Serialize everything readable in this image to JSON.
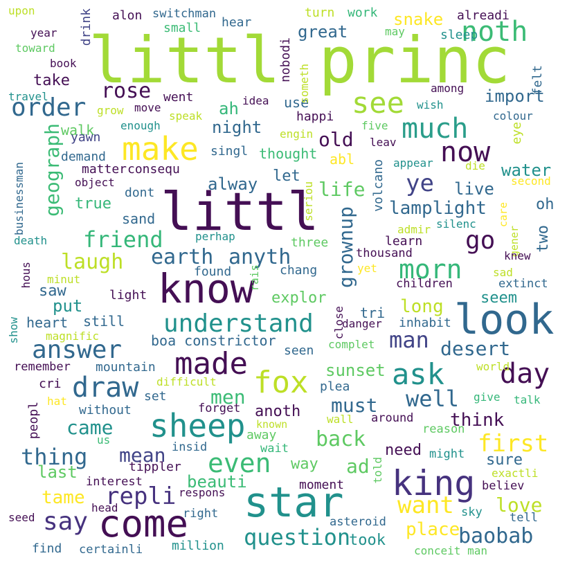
{
  "words": [
    {
      "text": "littl princ",
      "color": "#a2da37"
    },
    {
      "text": "littl",
      "color": "#440f54"
    },
    {
      "text": "know",
      "color": "#440f54"
    },
    {
      "text": "look",
      "color": "#31688e"
    },
    {
      "text": "star",
      "color": "#21918c"
    },
    {
      "text": "king",
      "color": "#46327e"
    },
    {
      "text": "come",
      "color": "#440f54"
    },
    {
      "text": "made",
      "color": "#440f54"
    },
    {
      "text": "fox",
      "color": "#bddf26"
    },
    {
      "text": "sheep",
      "color": "#21918c"
    },
    {
      "text": "make",
      "color": "#fde725"
    },
    {
      "text": "order",
      "color": "#31688e"
    },
    {
      "text": "much",
      "color": "#2a9d8a"
    },
    {
      "text": "now",
      "color": "#440f54"
    },
    {
      "text": "noth",
      "color": "#3bbb75"
    },
    {
      "text": "see",
      "color": "#a2da37"
    },
    {
      "text": "day",
      "color": "#440f54"
    },
    {
      "text": "ask",
      "color": "#21918c"
    },
    {
      "text": "draw",
      "color": "#31688e"
    },
    {
      "text": "answer",
      "color": "#31688e"
    },
    {
      "text": "understand",
      "color": "#21918c"
    },
    {
      "text": "say",
      "color": "#46327e"
    },
    {
      "text": "go",
      "color": "#440f54"
    },
    {
      "text": "repli",
      "color": "#46327e"
    },
    {
      "text": "morn",
      "color": "#35b779"
    },
    {
      "text": "even",
      "color": "#3bbb75"
    },
    {
      "text": "rose",
      "color": "#440f54"
    },
    {
      "text": "ye",
      "color": "#414487"
    },
    {
      "text": "question",
      "color": "#21918c"
    },
    {
      "text": "first",
      "color": "#fde725"
    },
    {
      "text": "want",
      "color": "#fde725"
    },
    {
      "text": "earth",
      "color": "#31688e"
    },
    {
      "text": "anyth",
      "color": "#31688e"
    },
    {
      "text": "well",
      "color": "#31688e"
    },
    {
      "text": "man",
      "color": "#414487"
    },
    {
      "text": "friend",
      "color": "#35b779"
    },
    {
      "text": "thing",
      "color": "#31688e"
    },
    {
      "text": "baobab",
      "color": "#31688e"
    },
    {
      "text": "laugh",
      "color": "#bddf26"
    },
    {
      "text": "geograph",
      "color": "#3bbb75"
    },
    {
      "text": "grownup",
      "color": "#31688e"
    },
    {
      "text": "back",
      "color": "#5ec962"
    },
    {
      "text": "desert",
      "color": "#31688e"
    },
    {
      "text": "came",
      "color": "#21918c"
    },
    {
      "text": "men",
      "color": "#3bbb75"
    },
    {
      "text": "old",
      "color": "#440f54"
    },
    {
      "text": "life",
      "color": "#5ec962"
    },
    {
      "text": "love",
      "color": "#bddf26"
    },
    {
      "text": "lamplight",
      "color": "#31688e"
    },
    {
      "text": "must",
      "color": "#31688e"
    },
    {
      "text": "beauti",
      "color": "#3bbb75"
    },
    {
      "text": "mean",
      "color": "#414487"
    },
    {
      "text": "ad",
      "color": "#5ec962"
    },
    {
      "text": "tame",
      "color": "#fde725"
    },
    {
      "text": "place",
      "color": "#fde725"
    },
    {
      "text": "long",
      "color": "#bddf26"
    },
    {
      "text": "sunset",
      "color": "#5ec962"
    },
    {
      "text": "think",
      "color": "#440f54"
    },
    {
      "text": "great",
      "color": "#31688e"
    },
    {
      "text": "snake",
      "color": "#fde725"
    },
    {
      "text": "import",
      "color": "#31688e"
    },
    {
      "text": "water",
      "color": "#21918c"
    },
    {
      "text": "live",
      "color": "#31688e"
    },
    {
      "text": "last",
      "color": "#5ec962"
    },
    {
      "text": "put",
      "color": "#21918c"
    },
    {
      "text": "saw",
      "color": "#31688e"
    },
    {
      "text": "ah",
      "color": "#35b779"
    },
    {
      "text": "night",
      "color": "#31688e"
    },
    {
      "text": "alway",
      "color": "#31688e"
    },
    {
      "text": "seem",
      "color": "#21918c"
    },
    {
      "text": "took",
      "color": "#21918c"
    },
    {
      "text": "take",
      "color": "#440f54"
    },
    {
      "text": "explor",
      "color": "#5ec962"
    },
    {
      "text": "oh",
      "color": "#31688e"
    },
    {
      "text": "two",
      "color": "#31688e"
    },
    {
      "text": "need",
      "color": "#440f54"
    },
    {
      "text": "tri",
      "color": "#31688e"
    },
    {
      "text": "sure",
      "color": "#31688e"
    },
    {
      "text": "way",
      "color": "#5ec962"
    },
    {
      "text": "true",
      "color": "#35b779"
    },
    {
      "text": "let",
      "color": "#31688e"
    },
    {
      "text": "anoth",
      "color": "#440f54"
    },
    {
      "text": "heart",
      "color": "#31688e"
    },
    {
      "text": "still",
      "color": "#31688e"
    },
    {
      "text": "boa constrictor",
      "color": "#31688e"
    },
    {
      "text": "abl",
      "color": "#fde725"
    },
    {
      "text": "thought",
      "color": "#3bbb75"
    },
    {
      "text": "walk",
      "color": "#5ec962"
    },
    {
      "text": "matter",
      "color": "#440f54"
    },
    {
      "text": "consequ",
      "color": "#440f54"
    },
    {
      "text": "sand",
      "color": "#31688e"
    },
    {
      "text": "use",
      "color": "#31688e"
    },
    {
      "text": "drink",
      "color": "#414487"
    },
    {
      "text": "small",
      "color": "#3bbb75"
    },
    {
      "text": "hear",
      "color": "#31688e"
    },
    {
      "text": "work",
      "color": "#35b779"
    },
    {
      "text": "turn",
      "color": "#bddf26"
    },
    {
      "text": "alreadi",
      "color": "#440f54"
    },
    {
      "text": "sleep",
      "color": "#21918c"
    },
    {
      "text": "switchman",
      "color": "#31688e"
    },
    {
      "text": "alon",
      "color": "#440f54"
    },
    {
      "text": "went",
      "color": "#440f54"
    },
    {
      "text": "nobodi",
      "color": "#440f54"
    },
    {
      "text": "felt",
      "color": "#31688e"
    },
    {
      "text": "eye",
      "color": "#bddf26"
    },
    {
      "text": "happi",
      "color": "#440f54"
    },
    {
      "text": "singl",
      "color": "#31688e"
    },
    {
      "text": "yawn",
      "color": "#414487"
    },
    {
      "text": "demand",
      "color": "#31688e"
    },
    {
      "text": "dont",
      "color": "#31688e"
    },
    {
      "text": "volcano",
      "color": "#31688e"
    },
    {
      "text": "inhabit",
      "color": "#31688e"
    },
    {
      "text": "children",
      "color": "#440f54"
    },
    {
      "text": "extinct",
      "color": "#31688e"
    },
    {
      "text": "three",
      "color": "#5ec962"
    },
    {
      "text": "learn",
      "color": "#440f54"
    },
    {
      "text": "thousand",
      "color": "#440f54"
    },
    {
      "text": "found",
      "color": "#31688e"
    },
    {
      "text": "chang",
      "color": "#31688e"
    },
    {
      "text": "light",
      "color": "#440f54"
    },
    {
      "text": "seen",
      "color": "#31688e"
    },
    {
      "text": "complet",
      "color": "#5ec962"
    },
    {
      "text": "danger",
      "color": "#440f54"
    },
    {
      "text": "peopl",
      "color": "#440f54"
    },
    {
      "text": "set",
      "color": "#31688e"
    },
    {
      "text": "without",
      "color": "#31688e"
    },
    {
      "text": "mountain",
      "color": "#31688e"
    },
    {
      "text": "remember",
      "color": "#440f54"
    },
    {
      "text": "cri",
      "color": "#440f54"
    },
    {
      "text": "plea",
      "color": "#31688e"
    },
    {
      "text": "forget",
      "color": "#440f54"
    },
    {
      "text": "around",
      "color": "#440f54"
    },
    {
      "text": "give",
      "color": "#35b779"
    },
    {
      "text": "talk",
      "color": "#35b779"
    },
    {
      "text": "wait",
      "color": "#35b779"
    },
    {
      "text": "reason",
      "color": "#5ec962"
    },
    {
      "text": "might",
      "color": "#21918c"
    },
    {
      "text": "tippler",
      "color": "#440f54"
    },
    {
      "text": "insid",
      "color": "#31688e"
    },
    {
      "text": "interest",
      "color": "#440f54"
    },
    {
      "text": "moment",
      "color": "#440f54"
    },
    {
      "text": "told",
      "color": "#5ec962"
    },
    {
      "text": "believ",
      "color": "#440f54"
    },
    {
      "text": "exactli",
      "color": "#bddf26"
    },
    {
      "text": "respons",
      "color": "#440f54"
    },
    {
      "text": "right",
      "color": "#31688e"
    },
    {
      "text": "head",
      "color": "#440f54"
    },
    {
      "text": "asteroid",
      "color": "#31688e"
    },
    {
      "text": "sky",
      "color": "#21918c"
    },
    {
      "text": "tell",
      "color": "#31688e"
    },
    {
      "text": "seed",
      "color": "#440f54"
    },
    {
      "text": "find",
      "color": "#31688e"
    },
    {
      "text": "certainli",
      "color": "#31688e"
    },
    {
      "text": "million",
      "color": "#21918c"
    },
    {
      "text": "conceit man",
      "color": "#5ec962"
    },
    {
      "text": "upon",
      "color": "#bddf26"
    },
    {
      "text": "year",
      "color": "#440f54"
    },
    {
      "text": "toward",
      "color": "#5ec962"
    },
    {
      "text": "book",
      "color": "#440f54"
    },
    {
      "text": "travel",
      "color": "#21918c"
    },
    {
      "text": "grow",
      "color": "#bddf26"
    },
    {
      "text": "move",
      "color": "#440f54"
    },
    {
      "text": "speak",
      "color": "#bddf26"
    },
    {
      "text": "idea",
      "color": "#440f54"
    },
    {
      "text": "enough",
      "color": "#21918c"
    },
    {
      "text": "engin",
      "color": "#bddf26"
    },
    {
      "text": "five",
      "color": "#5ec962"
    },
    {
      "text": "leav",
      "color": "#440f54"
    },
    {
      "text": "appear",
      "color": "#21918c"
    },
    {
      "text": "die",
      "color": "#bddf26"
    },
    {
      "text": "second",
      "color": "#fde725"
    },
    {
      "text": "object",
      "color": "#440f54"
    },
    {
      "text": "businessman",
      "color": "#31688e"
    },
    {
      "text": "seriou",
      "color": "#bddf26"
    },
    {
      "text": "care",
      "color": "#fde725"
    },
    {
      "text": "gener",
      "color": "#bddf26"
    },
    {
      "text": "admir",
      "color": "#bddf26"
    },
    {
      "text": "silenc",
      "color": "#21918c"
    },
    {
      "text": "knew",
      "color": "#440f54"
    },
    {
      "text": "death",
      "color": "#21918c"
    },
    {
      "text": "perhap",
      "color": "#21918c"
    },
    {
      "text": "yet",
      "color": "#fde725"
    },
    {
      "text": "sad",
      "color": "#bddf26"
    },
    {
      "text": "minut",
      "color": "#bddf26"
    },
    {
      "text": "hous",
      "color": "#440f54"
    },
    {
      "text": "rais",
      "color": "#5ec962"
    },
    {
      "text": "magnific",
      "color": "#bddf26"
    },
    {
      "text": "show",
      "color": "#21918c"
    },
    {
      "text": "close",
      "color": "#440f54"
    },
    {
      "text": "difficult",
      "color": "#bddf26"
    },
    {
      "text": "hat",
      "color": "#fde725"
    },
    {
      "text": "world",
      "color": "#bddf26"
    },
    {
      "text": "us",
      "color": "#3bbb75"
    },
    {
      "text": "away",
      "color": "#5ec962"
    },
    {
      "text": "known",
      "color": "#bddf26"
    },
    {
      "text": "wall",
      "color": "#bddf26"
    },
    {
      "text": "someth",
      "color": "#bddf26"
    },
    {
      "text": "among",
      "color": "#440f54"
    },
    {
      "text": "wish",
      "color": "#21918c"
    },
    {
      "text": "colour",
      "color": "#31688e"
    },
    {
      "text": "may",
      "color": "#5ec962"
    }
  ]
}
